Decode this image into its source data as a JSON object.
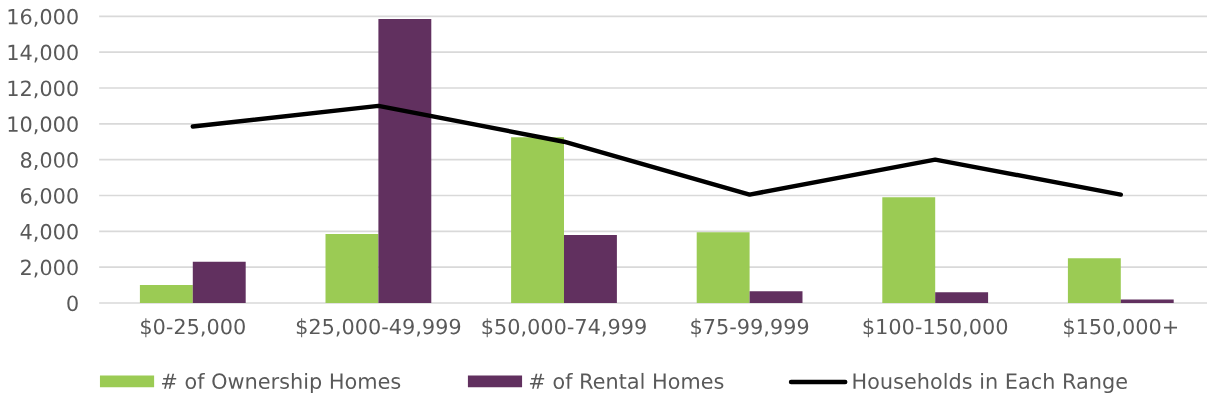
{
  "chart_data": {
    "type": "bar",
    "categories": [
      "$0-25,000",
      "$25,000-49,999",
      "$50,000-74,999",
      "$75-99,999",
      "$100-150,000",
      "$150,000+"
    ],
    "series": [
      {
        "name": "# of Ownership Homes",
        "color": "#9bcb54",
        "values": [
          1000,
          3850,
          9250,
          3950,
          5900,
          2500
        ]
      },
      {
        "name": "# of Rental Homes",
        "color": "#61305f",
        "values": [
          2300,
          15850,
          3800,
          650,
          600,
          200
        ]
      },
      {
        "name": "Households in Each Range",
        "type": "line",
        "color": "#000000",
        "values": [
          9850,
          11000,
          9000,
          6050,
          8000,
          6050
        ]
      }
    ],
    "ylim": [
      0,
      16000
    ],
    "yticks": [
      0,
      {
        "value": 2000,
        "label": "2,000"
      },
      {
        "value": 4000,
        "label": "4,000"
      },
      {
        "value": 6000,
        "label": "6,000"
      },
      {
        "value": 8000,
        "label": "8,000"
      },
      {
        "value": 10000,
        "label": "10,000"
      },
      {
        "value": 12000,
        "label": "12,000"
      },
      {
        "value": 14000,
        "label": "14,000"
      },
      {
        "value": 16000,
        "label": "16,000"
      }
    ],
    "grid": "y",
    "legend": "bottom"
  }
}
